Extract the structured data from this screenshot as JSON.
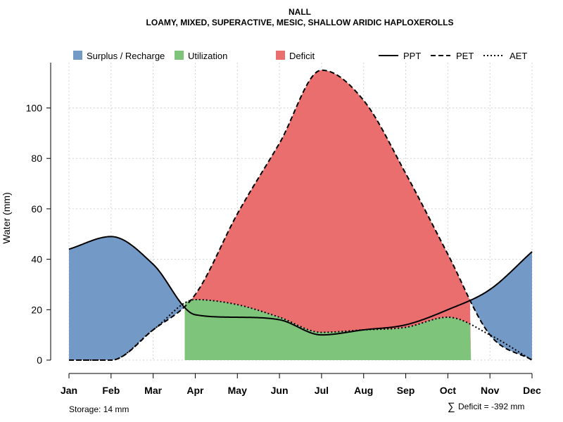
{
  "chart_data": {
    "type": "area",
    "title": "NALL",
    "subtitle": "LOAMY, MIXED, SUPERACTIVE, MESIC, SHALLOW ARIDIC HAPLOXEROLLS",
    "xlabel": "",
    "ylabel": "Water (mm)",
    "ylim": [
      0,
      118
    ],
    "yticks": [
      0,
      20,
      40,
      60,
      80,
      100
    ],
    "grid": true,
    "legend_position": "top",
    "categories": [
      "Jan",
      "Feb",
      "Mar",
      "Apr",
      "May",
      "Jun",
      "Jul",
      "Aug",
      "Sep",
      "Oct",
      "Nov",
      "Dec"
    ],
    "series": [
      {
        "name": "PPT",
        "style": "solid",
        "values": [
          44,
          49,
          38,
          18,
          17,
          16,
          10,
          12,
          14,
          20,
          28,
          43
        ]
      },
      {
        "name": "PET",
        "style": "dashed",
        "values": [
          0,
          0,
          12,
          26,
          58,
          86,
          115,
          103,
          74,
          42,
          10,
          0
        ]
      },
      {
        "name": "AET",
        "style": "dotted",
        "values": [
          0,
          0,
          12,
          24,
          22,
          17,
          11,
          12,
          13,
          17,
          10,
          0
        ]
      }
    ],
    "legend": [
      {
        "label": "Surplus / Recharge",
        "color": "#7399c6"
      },
      {
        "label": "Utilization",
        "color": "#7fc47b"
      },
      {
        "label": "Deficit",
        "color": "#ea6e6e"
      }
    ],
    "line_legend": [
      "PPT",
      "PET",
      "AET"
    ],
    "storage_note": "Storage: 14 mm",
    "deficit_symbol": "∑",
    "deficit_note": "Deficit = -392 mm"
  }
}
